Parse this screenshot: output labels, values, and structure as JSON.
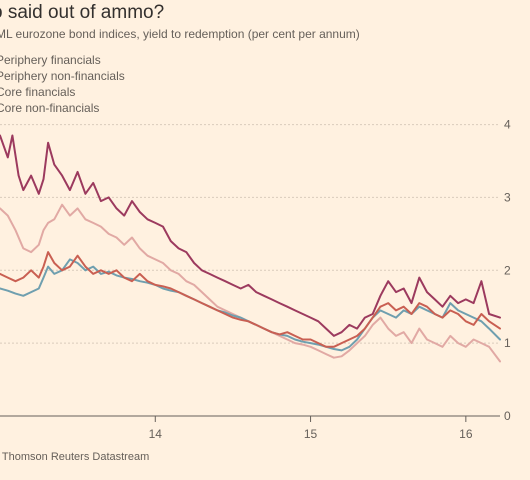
{
  "chart_data": {
    "type": "line",
    "title": "o said out of ammo?",
    "subtitle": "ML eurozone bond indices, yield to redemption (per cent per annum)",
    "source": ": Thomson Reuters Datastream",
    "ylim": [
      0,
      4.2
    ],
    "xlim": [
      2013.0,
      2016.22
    ],
    "yticks": [
      {
        "value": 0,
        "label": "0"
      },
      {
        "value": 1,
        "label": "1"
      },
      {
        "value": 2,
        "label": "2"
      },
      {
        "value": 3,
        "label": "3"
      },
      {
        "value": 4,
        "label": "4"
      }
    ],
    "xticks": [
      {
        "value": 2014,
        "label": "14"
      },
      {
        "value": 2015,
        "label": "15"
      },
      {
        "value": 2016,
        "label": "16"
      }
    ],
    "grid": true,
    "legend_position": "top-left",
    "series": [
      {
        "name": "Periphery financials",
        "color": "#9c3a5e",
        "x": [
          2013.0,
          2013.05,
          2013.08,
          2013.12,
          2013.15,
          2013.2,
          2013.25,
          2013.28,
          2013.31,
          2013.35,
          2013.4,
          2013.45,
          2013.5,
          2013.55,
          2013.6,
          2013.65,
          2013.7,
          2013.75,
          2013.8,
          2013.85,
          2013.9,
          2013.95,
          2014.0,
          2014.05,
          2014.1,
          2014.15,
          2014.2,
          2014.25,
          2014.3,
          2014.35,
          2014.4,
          2014.45,
          2014.5,
          2014.55,
          2014.6,
          2014.65,
          2014.7,
          2014.75,
          2014.8,
          2014.85,
          2014.9,
          2014.95,
          2015.0,
          2015.05,
          2015.1,
          2015.15,
          2015.2,
          2015.25,
          2015.3,
          2015.35,
          2015.4,
          2015.45,
          2015.5,
          2015.55,
          2015.6,
          2015.65,
          2015.7,
          2015.75,
          2015.8,
          2015.85,
          2015.9,
          2015.95,
          2016.0,
          2016.05,
          2016.1,
          2016.15,
          2016.22
        ],
        "values": [
          3.85,
          3.55,
          3.85,
          3.3,
          3.1,
          3.3,
          3.05,
          3.25,
          3.75,
          3.45,
          3.3,
          3.1,
          3.35,
          3.05,
          3.2,
          2.95,
          3.0,
          2.85,
          2.75,
          2.95,
          2.8,
          2.7,
          2.65,
          2.6,
          2.4,
          2.3,
          2.25,
          2.1,
          2.0,
          1.95,
          1.9,
          1.85,
          1.8,
          1.75,
          1.8,
          1.7,
          1.65,
          1.6,
          1.55,
          1.5,
          1.45,
          1.4,
          1.35,
          1.3,
          1.2,
          1.1,
          1.15,
          1.25,
          1.2,
          1.35,
          1.4,
          1.65,
          1.85,
          1.7,
          1.75,
          1.55,
          1.9,
          1.7,
          1.6,
          1.5,
          1.65,
          1.55,
          1.6,
          1.55,
          1.85,
          1.4,
          1.35
        ]
      },
      {
        "name": "Periphery non-financials",
        "color": "#c95f52",
        "x": [
          2013.0,
          2013.05,
          2013.1,
          2013.15,
          2013.2,
          2013.25,
          2013.28,
          2013.31,
          2013.35,
          2013.4,
          2013.45,
          2013.5,
          2013.55,
          2013.6,
          2013.65,
          2013.7,
          2013.75,
          2013.8,
          2013.85,
          2013.9,
          2013.95,
          2014.0,
          2014.05,
          2014.1,
          2014.15,
          2014.2,
          2014.25,
          2014.3,
          2014.35,
          2014.4,
          2014.45,
          2014.5,
          2014.55,
          2014.6,
          2014.65,
          2014.7,
          2014.75,
          2014.8,
          2014.85,
          2014.9,
          2014.95,
          2015.0,
          2015.05,
          2015.1,
          2015.15,
          2015.2,
          2015.25,
          2015.3,
          2015.35,
          2015.4,
          2015.45,
          2015.5,
          2015.55,
          2015.6,
          2015.65,
          2015.7,
          2015.75,
          2015.8,
          2015.85,
          2015.9,
          2015.95,
          2016.0,
          2016.05,
          2016.1,
          2016.15,
          2016.22
        ],
        "values": [
          1.95,
          1.9,
          1.85,
          1.9,
          2.0,
          1.9,
          2.05,
          2.25,
          2.1,
          2.0,
          2.05,
          2.2,
          2.05,
          1.95,
          2.0,
          1.95,
          2.0,
          1.9,
          1.85,
          1.95,
          1.85,
          1.8,
          1.78,
          1.75,
          1.7,
          1.65,
          1.6,
          1.55,
          1.5,
          1.45,
          1.4,
          1.35,
          1.32,
          1.3,
          1.25,
          1.2,
          1.15,
          1.12,
          1.15,
          1.1,
          1.05,
          1.05,
          1.0,
          0.95,
          0.95,
          1.0,
          1.05,
          1.1,
          1.2,
          1.35,
          1.5,
          1.55,
          1.45,
          1.5,
          1.4,
          1.55,
          1.5,
          1.4,
          1.35,
          1.45,
          1.4,
          1.3,
          1.25,
          1.4,
          1.3,
          1.2
        ]
      },
      {
        "name": "Core financials",
        "color": "#e1a9a4",
        "x": [
          2013.0,
          2013.05,
          2013.1,
          2013.15,
          2013.2,
          2013.25,
          2013.28,
          2013.31,
          2013.35,
          2013.4,
          2013.45,
          2013.5,
          2013.55,
          2013.6,
          2013.65,
          2013.7,
          2013.75,
          2013.8,
          2013.85,
          2013.9,
          2013.95,
          2014.0,
          2014.05,
          2014.1,
          2014.15,
          2014.2,
          2014.25,
          2014.3,
          2014.35,
          2014.4,
          2014.45,
          2014.5,
          2014.55,
          2014.6,
          2014.65,
          2014.7,
          2014.75,
          2014.8,
          2014.85,
          2014.9,
          2014.95,
          2015.0,
          2015.05,
          2015.1,
          2015.15,
          2015.2,
          2015.25,
          2015.3,
          2015.35,
          2015.4,
          2015.45,
          2015.5,
          2015.55,
          2015.6,
          2015.65,
          2015.7,
          2015.75,
          2015.8,
          2015.85,
          2015.9,
          2015.95,
          2016.0,
          2016.05,
          2016.1,
          2016.15,
          2016.22
        ],
        "values": [
          2.85,
          2.75,
          2.55,
          2.3,
          2.25,
          2.35,
          2.55,
          2.65,
          2.7,
          2.9,
          2.75,
          2.85,
          2.7,
          2.65,
          2.6,
          2.5,
          2.45,
          2.35,
          2.45,
          2.3,
          2.2,
          2.15,
          2.1,
          2.0,
          1.95,
          1.85,
          1.8,
          1.7,
          1.6,
          1.5,
          1.45,
          1.4,
          1.35,
          1.3,
          1.25,
          1.2,
          1.15,
          1.1,
          1.05,
          1.0,
          0.98,
          0.95,
          0.9,
          0.85,
          0.8,
          0.82,
          0.9,
          1.0,
          1.1,
          1.25,
          1.35,
          1.2,
          1.1,
          1.15,
          1.0,
          1.2,
          1.05,
          1.0,
          0.95,
          1.1,
          1.0,
          0.95,
          1.05,
          1.0,
          0.95,
          0.75
        ]
      },
      {
        "name": "Core non-financials",
        "color": "#6f9faf",
        "x": [
          2013.0,
          2013.05,
          2013.1,
          2013.15,
          2013.2,
          2013.25,
          2013.28,
          2013.31,
          2013.35,
          2013.4,
          2013.45,
          2013.5,
          2013.55,
          2013.6,
          2013.65,
          2013.7,
          2013.75,
          2013.8,
          2013.85,
          2013.9,
          2013.95,
          2014.0,
          2014.05,
          2014.1,
          2014.15,
          2014.2,
          2014.25,
          2014.3,
          2014.35,
          2014.4,
          2014.45,
          2014.5,
          2014.55,
          2014.6,
          2014.65,
          2014.7,
          2014.75,
          2014.8,
          2014.85,
          2014.9,
          2014.95,
          2015.0,
          2015.05,
          2015.1,
          2015.15,
          2015.2,
          2015.25,
          2015.3,
          2015.35,
          2015.4,
          2015.45,
          2015.5,
          2015.55,
          2015.6,
          2015.65,
          2015.7,
          2015.75,
          2015.8,
          2015.85,
          2015.9,
          2015.95,
          2016.0,
          2016.05,
          2016.1,
          2016.15,
          2016.22
        ],
        "values": [
          1.75,
          1.72,
          1.68,
          1.65,
          1.7,
          1.75,
          1.9,
          2.05,
          1.95,
          2.0,
          2.15,
          2.1,
          2.0,
          2.05,
          1.95,
          1.98,
          1.93,
          1.9,
          1.88,
          1.85,
          1.83,
          1.8,
          1.75,
          1.72,
          1.7,
          1.65,
          1.6,
          1.55,
          1.5,
          1.45,
          1.42,
          1.38,
          1.35,
          1.3,
          1.25,
          1.2,
          1.15,
          1.12,
          1.1,
          1.05,
          1.02,
          1.0,
          0.98,
          0.95,
          0.92,
          0.9,
          0.95,
          1.05,
          1.2,
          1.35,
          1.45,
          1.4,
          1.35,
          1.45,
          1.4,
          1.5,
          1.45,
          1.4,
          1.35,
          1.55,
          1.45,
          1.4,
          1.35,
          1.3,
          1.2,
          1.05
        ]
      }
    ]
  }
}
